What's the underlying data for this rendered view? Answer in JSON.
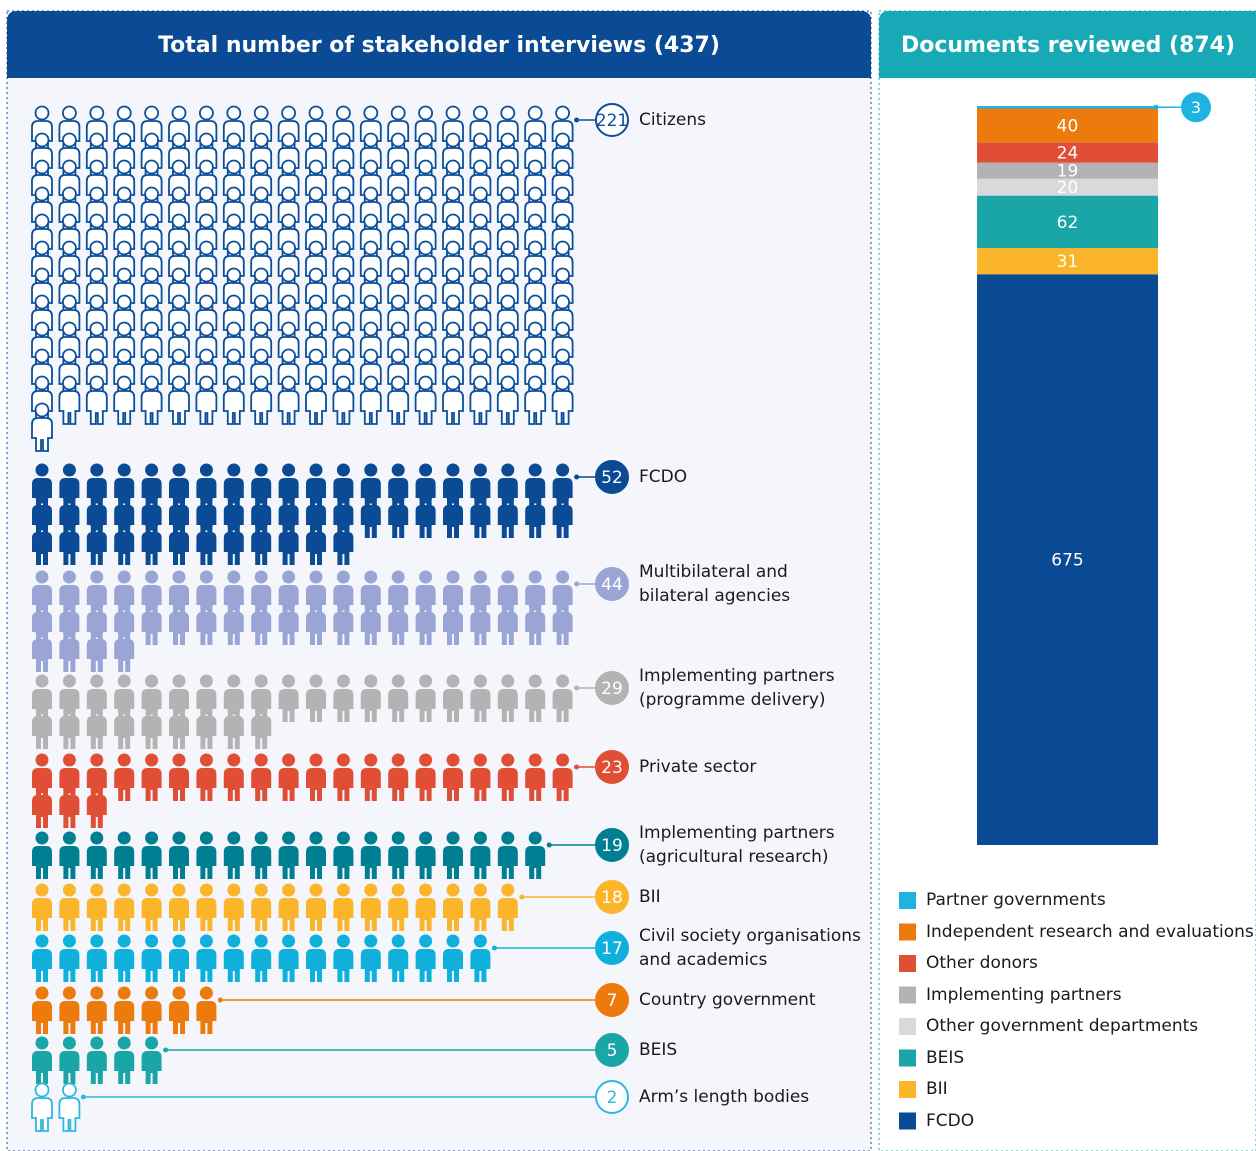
{
  "chart_data": [
    {
      "type": "pictogram",
      "title": "Total number of stakeholder interviews (437)",
      "categories": [
        "Citizens",
        "FCDO",
        "Multibilateral and bilateral agencies",
        "Implementing partners (programme delivery)",
        "Private sector",
        "Implementing partners (agricultural research)",
        "BII",
        "Civil society organisations and academics",
        "Country government",
        "BEIS",
        "Arm’s length bodies"
      ],
      "values": [
        221,
        52,
        44,
        29,
        23,
        19,
        18,
        17,
        7,
        5,
        2
      ],
      "colors": [
        "#0b4f9c",
        "#0b4a94",
        "#9aa5d6",
        "#b3b3b3",
        "#e04e35",
        "#007f93",
        "#fbb52b",
        "#10b0dc",
        "#ed7a0d",
        "#1aa6a6",
        "#2eb8e0"
      ],
      "outline": [
        true,
        false,
        false,
        false,
        false,
        false,
        false,
        false,
        false,
        false,
        true
      ]
    },
    {
      "type": "stacked_bar",
      "title": "Documents reviewed (874)",
      "series": [
        {
          "name": "Partner governments",
          "color": "#1fb3e0",
          "values": [
            3
          ]
        },
        {
          "name": "Independent research and evaluations",
          "color": "#ed7a0d",
          "values": [
            40
          ]
        },
        {
          "name": "Other donors",
          "color": "#e04e35",
          "values": [
            24
          ]
        },
        {
          "name": "Implementing partners",
          "color": "#b3b3b3",
          "values": [
            19
          ]
        },
        {
          "name": "Other government departments",
          "color": "#d9d9d9",
          "values": [
            20
          ]
        },
        {
          "name": "BEIS",
          "color": "#1aa6a6",
          "values": [
            62
          ]
        },
        {
          "name": "BII",
          "color": "#fbb52b",
          "values": [
            31
          ]
        },
        {
          "name": "FCDO",
          "color": "#0b4a94",
          "values": [
            675
          ]
        }
      ]
    }
  ]
}
